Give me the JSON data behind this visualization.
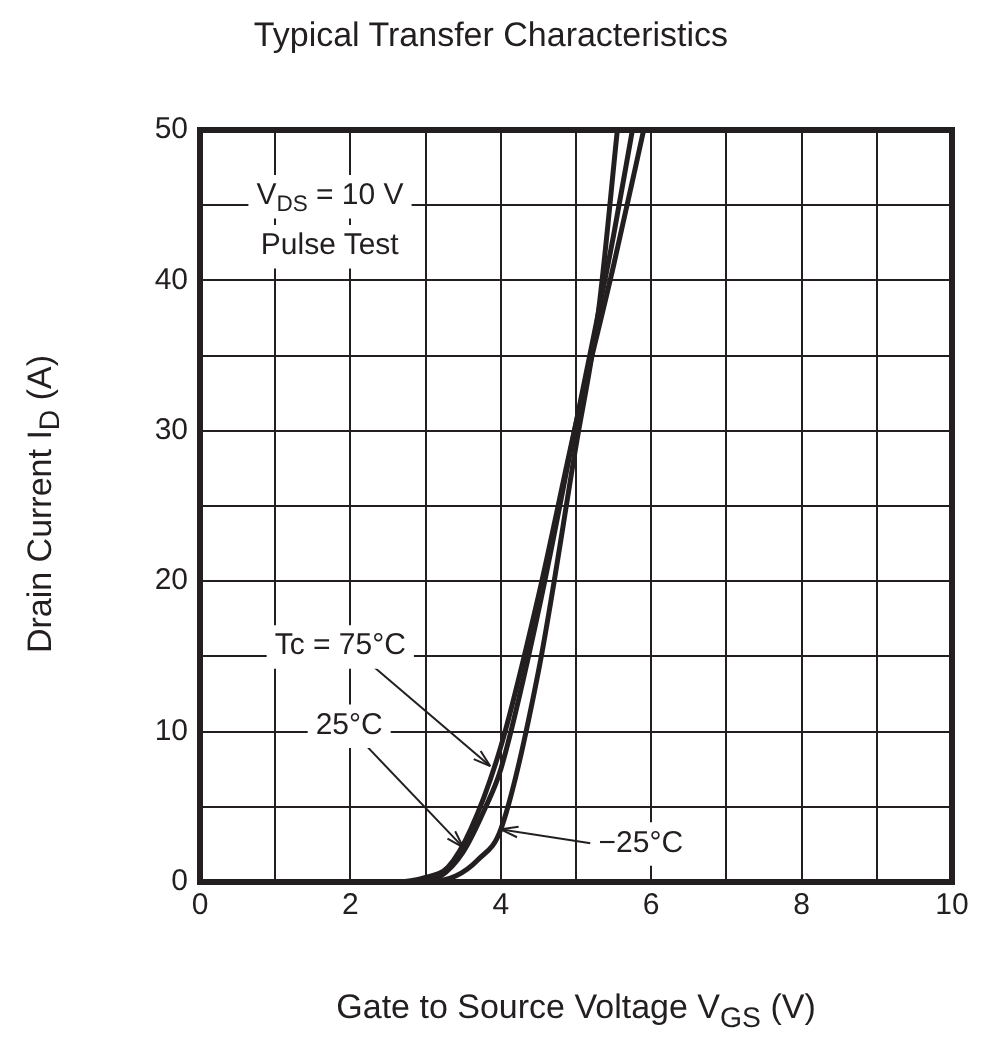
{
  "chart_data": {
    "type": "line",
    "title": "Typical Transfer Characteristics",
    "xlabel": "Gate to Source Voltage  V$_{GS}$  (V)",
    "ylabel": "Drain Current  I$_{D}$  (A)",
    "series": [
      {
        "color": "#231f20",
        "x": [
          0,
          2.6,
          3,
          3.3,
          3.6,
          4,
          4.5,
          5,
          5.5,
          5.9
        ],
        "values": [
          0,
          0,
          0.3,
          1,
          3.5,
          9,
          19,
          30.5,
          41,
          50
        ]
      },
      {
        "color": "#231f20",
        "x": [
          0,
          2.8,
          3.2,
          3.5,
          3.8,
          4,
          4.5,
          5,
          5.5,
          5.75
        ],
        "values": [
          0,
          0,
          0.4,
          2,
          5,
          7.5,
          18,
          30.5,
          43,
          50
        ]
      },
      {
        "color": "#231f20",
        "x": [
          0,
          3,
          3.4,
          3.7,
          4,
          4.5,
          5,
          5.3,
          5.55
        ],
        "values": [
          0,
          0,
          0.4,
          1.5,
          3.5,
          14,
          29,
          38,
          50
        ]
      }
    ],
    "xlim": [
      0,
      10
    ],
    "ylim": [
      0,
      50
    ],
    "xticks": [
      0,
      {
        "value": 1,
        "label": null
      },
      2,
      {
        "value": 3,
        "label": null
      },
      4,
      {
        "value": 5,
        "label": null
      },
      6,
      {
        "value": 7,
        "label": null
      },
      8,
      {
        "value": 9,
        "label": null
      },
      10
    ],
    "yticks": [
      0,
      {
        "value": 5,
        "label": null
      },
      10,
      {
        "value": 15,
        "label": null
      },
      20,
      {
        "value": 25,
        "label": null
      },
      30,
      {
        "value": 35,
        "label": null
      },
      40,
      {
        "value": 45,
        "label": null
      },
      50
    ],
    "grid": true,
    "legend": false,
    "marker": "none",
    "line_style": "solid",
    "annotations": [
      "V$_{DS}$ = 10 V",
      "Pulse Test",
      {
        "text": "Tc = 75°C",
        "x": 3.86,
        "y": 7.7
      },
      {
        "text": "25°C",
        "x": 3.5,
        "y": 2.3
      },
      {
        "text": "−25°C",
        "x": 4,
        "y": 3.5
      }
    ]
  }
}
